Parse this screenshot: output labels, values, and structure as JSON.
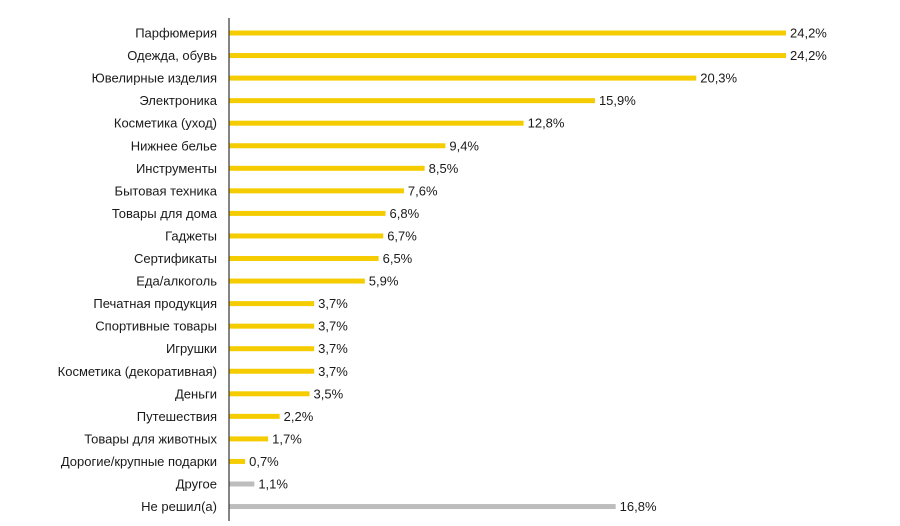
{
  "chart_data": {
    "type": "bar",
    "orientation": "horizontal",
    "grid": false,
    "legend": "none",
    "xlim": [
      0,
      24.2
    ],
    "categories": [
      "Парфюмерия",
      "Одежда, обувь",
      "Ювелирные изделия",
      "Электроника",
      "Косметика (уход)",
      "Нижнее белье",
      "Инструменты",
      "Бытовая техника",
      "Товары для дома",
      "Гаджеты",
      "Сертификаты",
      "Еда/алкоголь",
      "Печатная продукция",
      "Спортивные товары",
      "Игрушки",
      "Косметика (декоративная)",
      "Деньги",
      "Путешествия",
      "Товары для животных",
      "Дорогие/крупные подарки",
      "Другое",
      "Не решил(а)"
    ],
    "values": [
      24.2,
      24.2,
      20.3,
      15.9,
      12.8,
      9.4,
      8.5,
      7.6,
      6.8,
      6.7,
      6.5,
      5.9,
      3.7,
      3.7,
      3.7,
      3.7,
      3.5,
      2.2,
      1.7,
      0.7,
      1.1,
      16.8
    ],
    "value_labels": [
      "24,2%",
      "24,2%",
      "20,3%",
      "15,9%",
      "12,8%",
      "9,4%",
      "8,5%",
      "7,6%",
      "6,8%",
      "6,7%",
      "6,5%",
      "5,9%",
      "3,7%",
      "3,7%",
      "3,7%",
      "3,7%",
      "3,5%",
      "2,2%",
      "1,7%",
      "0,7%",
      "1,1%",
      "16,8%"
    ],
    "bar_colors": [
      "#f5cc00",
      "#f5cc00",
      "#f5cc00",
      "#f5cc00",
      "#f5cc00",
      "#f5cc00",
      "#f5cc00",
      "#f5cc00",
      "#f5cc00",
      "#f5cc00",
      "#f5cc00",
      "#f5cc00",
      "#f5cc00",
      "#f5cc00",
      "#f5cc00",
      "#f5cc00",
      "#f5cc00",
      "#f5cc00",
      "#f5cc00",
      "#f5cc00",
      "#bdbdbd",
      "#bdbdbd"
    ],
    "axis_color": "#333333",
    "text_color": "#1a1a1a"
  }
}
